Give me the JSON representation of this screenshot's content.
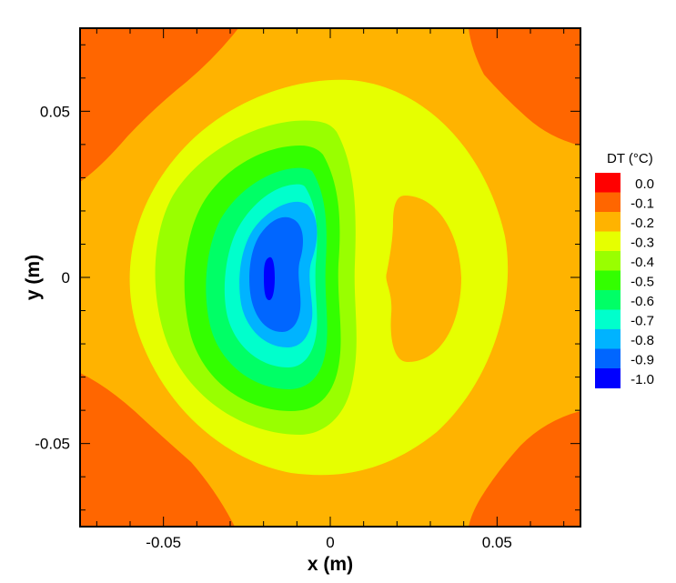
{
  "chart_data": {
    "type": "heatmap",
    "subtype": "filled-contour",
    "xlabel": "x (m)",
    "ylabel": "y (m)",
    "xlim": [
      -0.075,
      0.075
    ],
    "ylim": [
      -0.075,
      0.075
    ],
    "x_ticks": [
      {
        "value": -0.05,
        "label": "-0.05"
      },
      {
        "value": 0,
        "label": "0"
      },
      {
        "value": 0.05,
        "label": "0.05"
      }
    ],
    "y_ticks": [
      {
        "value": 0.05,
        "label": "0.05"
      },
      {
        "value": 0,
        "label": "0"
      },
      {
        "value": -0.05,
        "label": "-0.05"
      }
    ],
    "grid": false,
    "legend": {
      "title": "DT (°C)",
      "placement": "right",
      "levels": [
        {
          "label": "0.0",
          "value": 0.0,
          "color": "#ff0000"
        },
        {
          "label": "-0.1",
          "value": -0.1,
          "color": "#ff6600"
        },
        {
          "label": "-0.2",
          "value": -0.2,
          "color": "#ffb300"
        },
        {
          "label": "-0.3",
          "value": -0.3,
          "color": "#e6ff00"
        },
        {
          "label": "-0.4",
          "value": -0.4,
          "color": "#99ff00"
        },
        {
          "label": "-0.5",
          "value": -0.5,
          "color": "#33ff00"
        },
        {
          "label": "-0.6",
          "value": -0.6,
          "color": "#00ff66"
        },
        {
          "label": "-0.7",
          "value": -0.7,
          "color": "#00ffcc"
        },
        {
          "label": "-0.8",
          "value": -0.8,
          "color": "#00b3ff"
        },
        {
          "label": "-0.9",
          "value": -0.9,
          "color": "#0066ff"
        },
        {
          "label": "-1.0",
          "value": -1.0,
          "color": "#0000ff"
        }
      ]
    },
    "regions": [
      {
        "level": -0.1,
        "description": "four corners",
        "centers": [
          [
            -0.075,
            0.075
          ],
          [
            0.075,
            0.075
          ],
          [
            -0.075,
            -0.075
          ],
          [
            0.075,
            -0.075
          ]
        ]
      },
      {
        "level": -0.2,
        "description": "background, and lobe centered near",
        "center": [
          0.027,
          0.0
        ]
      },
      {
        "level": -0.3,
        "description": "large ring",
        "center": [
          -0.005,
          0.0
        ]
      },
      {
        "level": -1.0,
        "description": "minimum core",
        "center": [
          -0.019,
          0.0
        ]
      }
    ]
  }
}
